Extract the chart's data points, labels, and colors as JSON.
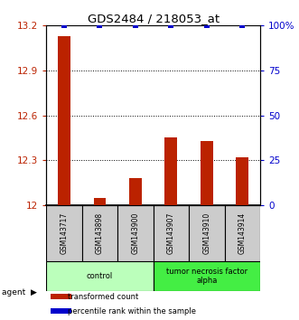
{
  "title": "GDS2484 / 218053_at",
  "samples": [
    "GSM143717",
    "GSM143898",
    "GSM143900",
    "GSM143907",
    "GSM143910",
    "GSM143914"
  ],
  "bar_values": [
    13.13,
    12.05,
    12.18,
    12.45,
    12.43,
    12.32
  ],
  "percentile_values": [
    100,
    100,
    100,
    100,
    100,
    100
  ],
  "ylim_left": [
    12.0,
    13.2
  ],
  "ylim_right": [
    0,
    100
  ],
  "yticks_left": [
    12.0,
    12.3,
    12.6,
    12.9,
    13.2
  ],
  "ytick_labels_left": [
    "12",
    "12.3",
    "12.6",
    "12.9",
    "13.2"
  ],
  "yticks_right": [
    0,
    25,
    50,
    75,
    100
  ],
  "ytick_labels_right": [
    "0",
    "25",
    "50",
    "75",
    "100%"
  ],
  "grid_lines": [
    12.3,
    12.6,
    12.9
  ],
  "bar_color": "#bb2200",
  "dot_color": "#0000cc",
  "bar_width": 0.35,
  "groups": [
    {
      "label": "control",
      "indices": [
        0,
        1,
        2
      ],
      "color": "#bbffbb"
    },
    {
      "label": "tumor necrosis factor\nalpha",
      "indices": [
        3,
        4,
        5
      ],
      "color": "#44ee44"
    }
  ],
  "agent_label": "agent",
  "legend_items": [
    {
      "label": "transformed count",
      "color": "#bb2200"
    },
    {
      "label": "percentile rank within the sample",
      "color": "#0000cc"
    }
  ],
  "background_color": "#ffffff",
  "label_area_color": "#cccccc"
}
